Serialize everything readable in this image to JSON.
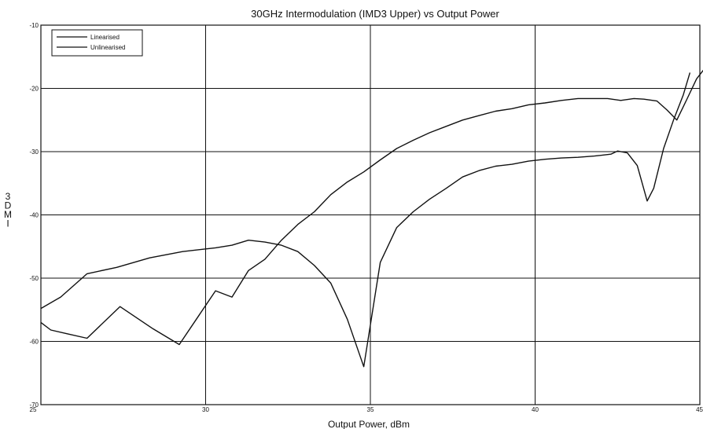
{
  "chart_data": {
    "type": "line",
    "title": "30GHz Intermodulation (IMD3 Upper) vs Output Power",
    "xlabel": "Output Power, dBm",
    "ylabel": "IMD3",
    "ylabel_display": [
      "3",
      "D",
      "M",
      "I"
    ],
    "xlim": [
      25,
      45
    ],
    "ylim": [
      -70,
      -10
    ],
    "x_ticks": [
      25,
      30,
      35,
      40,
      45
    ],
    "y_ticks": [
      -70,
      -60,
      -50,
      -40,
      -30,
      -20,
      -10
    ],
    "grid": true,
    "legend_position": "top-left",
    "series": [
      {
        "name": "Linearised",
        "points": [
          [
            25.0,
            -57.0
          ],
          [
            25.3,
            -58.2
          ],
          [
            25.8,
            -58.8
          ],
          [
            26.4,
            -59.5
          ],
          [
            27.4,
            -54.5
          ],
          [
            28.4,
            -58.0
          ],
          [
            29.2,
            -60.5
          ],
          [
            30.3,
            -52.0
          ],
          [
            30.8,
            -53.0
          ],
          [
            31.3,
            -48.8
          ],
          [
            31.8,
            -47.0
          ],
          [
            32.3,
            -44.0
          ],
          [
            32.8,
            -41.5
          ],
          [
            33.3,
            -39.5
          ],
          [
            33.8,
            -36.8
          ],
          [
            34.3,
            -34.8
          ],
          [
            34.8,
            -33.2
          ],
          [
            35.3,
            -31.3
          ],
          [
            35.8,
            -29.5
          ],
          [
            36.3,
            -28.2
          ],
          [
            36.8,
            -27.0
          ],
          [
            37.3,
            -26.0
          ],
          [
            37.8,
            -25.0
          ],
          [
            38.3,
            -24.3
          ],
          [
            38.8,
            -23.6
          ],
          [
            39.3,
            -23.2
          ],
          [
            39.8,
            -22.6
          ],
          [
            40.3,
            -22.3
          ],
          [
            40.8,
            -21.9
          ],
          [
            41.3,
            -21.6
          ],
          [
            41.8,
            -21.6
          ],
          [
            42.2,
            -21.6
          ],
          [
            42.6,
            -21.9
          ],
          [
            43.0,
            -21.6
          ],
          [
            43.3,
            -21.7
          ],
          [
            43.7,
            -22.0
          ],
          [
            44.0,
            -23.4
          ],
          [
            44.3,
            -25.0
          ],
          [
            44.6,
            -21.8
          ],
          [
            44.9,
            -18.5
          ],
          [
            45.2,
            -16.5
          ]
        ]
      },
      {
        "name": "Unlinearised",
        "points": [
          [
            25.0,
            -54.8
          ],
          [
            25.6,
            -53.0
          ],
          [
            26.4,
            -49.3
          ],
          [
            27.3,
            -48.3
          ],
          [
            28.3,
            -46.8
          ],
          [
            29.3,
            -45.8
          ],
          [
            30.3,
            -45.2
          ],
          [
            30.8,
            -44.8
          ],
          [
            31.3,
            -44.0
          ],
          [
            31.8,
            -44.3
          ],
          [
            32.3,
            -44.8
          ],
          [
            32.8,
            -45.8
          ],
          [
            33.3,
            -48.0
          ],
          [
            33.8,
            -50.8
          ],
          [
            34.3,
            -56.5
          ],
          [
            34.8,
            -64.0
          ],
          [
            35.3,
            -47.5
          ],
          [
            35.8,
            -42.0
          ],
          [
            36.3,
            -39.5
          ],
          [
            36.8,
            -37.5
          ],
          [
            37.3,
            -35.8
          ],
          [
            37.8,
            -34.0
          ],
          [
            38.3,
            -33.0
          ],
          [
            38.8,
            -32.3
          ],
          [
            39.3,
            -32.0
          ],
          [
            39.8,
            -31.5
          ],
          [
            40.3,
            -31.2
          ],
          [
            40.8,
            -31.0
          ],
          [
            41.3,
            -30.9
          ],
          [
            41.8,
            -30.7
          ],
          [
            42.3,
            -30.4
          ],
          [
            42.5,
            -29.9
          ],
          [
            42.8,
            -30.2
          ],
          [
            43.1,
            -32.2
          ],
          [
            43.4,
            -37.8
          ],
          [
            43.6,
            -35.8
          ],
          [
            43.9,
            -29.5
          ],
          [
            44.2,
            -25.0
          ],
          [
            44.5,
            -21.0
          ],
          [
            44.7,
            -17.5
          ]
        ]
      }
    ]
  },
  "colors": {
    "background": "#ffffff",
    "line": "#111111",
    "grid": "#111111"
  }
}
